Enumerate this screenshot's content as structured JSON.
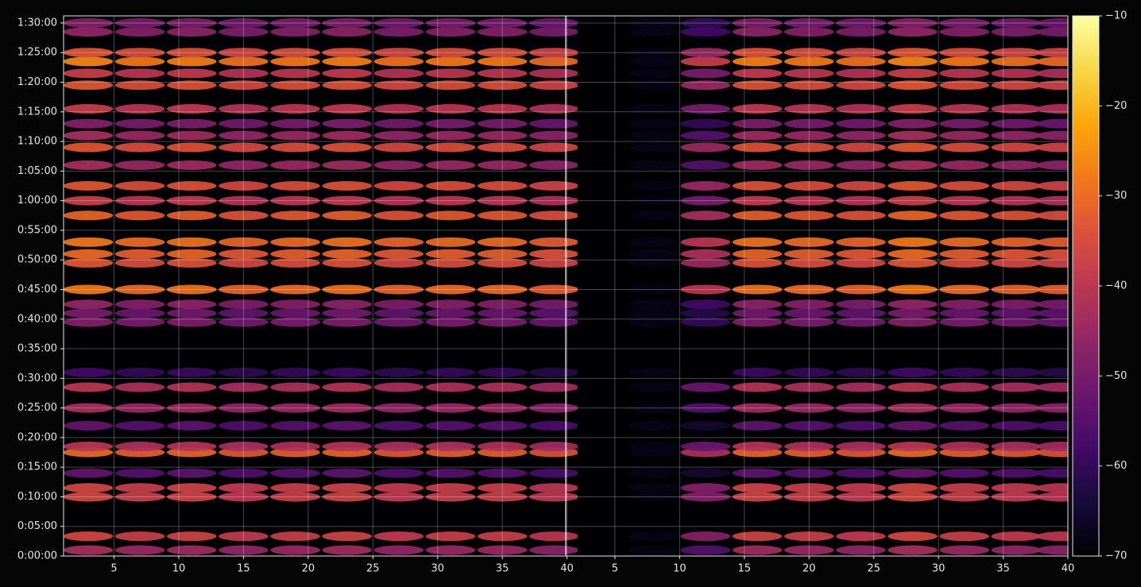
{
  "chart_data": {
    "type": "heatmap",
    "x": [
      3,
      7,
      11,
      15,
      19,
      23,
      27,
      31,
      35,
      39,
      42.7,
      46.7,
      50.7,
      54.7,
      58.7,
      62.7,
      66.7,
      70.7,
      74.7,
      78.2
    ],
    "y": [
      60,
      200,
      600,
      690,
      840,
      1050,
      1110,
      1320,
      1500,
      1710,
      1860,
      2370,
      2460,
      2550,
      2700,
      2970,
      3060,
      3180,
      3450,
      3600,
      3750,
      3960,
      4140,
      4260,
      4380,
      4530,
      4770,
      4890,
      5010,
      5100,
      5310,
      5400
    ],
    "values": [
      [
        -43,
        -45,
        -44,
        -46,
        -45,
        -44,
        -46,
        -45,
        -45,
        -47,
        -70,
        -68,
        -55,
        -44,
        -45,
        -46,
        -43,
        -45,
        -46,
        -47
      ],
      [
        -36,
        -38,
        -37,
        -39,
        -38,
        -37,
        -39,
        -38,
        -38,
        -40,
        -70,
        -68,
        -48,
        -37,
        -38,
        -39,
        -36,
        -38,
        -39,
        -40
      ],
      [
        -36,
        -38,
        -37,
        -39,
        -38,
        -37,
        -39,
        -38,
        -38,
        -40,
        -70,
        -68,
        -48,
        -37,
        -38,
        -39,
        -36,
        -38,
        -39,
        -40
      ],
      [
        -36,
        -38,
        -37,
        -39,
        -38,
        -37,
        -39,
        -38,
        -38,
        -40,
        -70,
        -68,
        -48,
        -37,
        -38,
        -39,
        -36,
        -38,
        -39,
        -40
      ],
      [
        -53,
        -55,
        -54,
        -56,
        -55,
        -54,
        -56,
        -55,
        -55,
        -57,
        -70,
        -68,
        -65,
        -54,
        -55,
        -56,
        -53,
        -55,
        -56,
        -57
      ],
      [
        -30,
        -32,
        -31,
        -33,
        -32,
        -31,
        -33,
        -32,
        -32,
        -34,
        -70,
        -68,
        -42,
        -31,
        -32,
        -33,
        -30,
        -32,
        -33,
        -34
      ],
      [
        -40,
        -42,
        -41,
        -43,
        -42,
        -41,
        -43,
        -42,
        -42,
        -44,
        -70,
        -68,
        -52,
        -41,
        -42,
        -43,
        -40,
        -42,
        -43,
        -44
      ],
      [
        -53,
        -55,
        -54,
        -56,
        -55,
        -54,
        -56,
        -55,
        -55,
        -57,
        -70,
        -68,
        -65,
        -54,
        -55,
        -56,
        -53,
        -55,
        -56,
        -57
      ],
      [
        -43,
        -45,
        -44,
        -46,
        -45,
        -44,
        -46,
        -45,
        -45,
        -47,
        -70,
        -68,
        -55,
        -44,
        -45,
        -46,
        -43,
        -45,
        -46,
        -47
      ],
      [
        -40,
        -42,
        -41,
        -43,
        -42,
        -41,
        -43,
        -42,
        -42,
        -44,
        -70,
        -68,
        -52,
        -41,
        -42,
        -43,
        -40,
        -42,
        -43,
        -44
      ],
      [
        -58,
        -60,
        -59,
        -61,
        -60,
        -59,
        -61,
        -60,
        -60,
        -62,
        -70,
        -68,
        -70,
        -59,
        -60,
        -61,
        -58,
        -60,
        -61,
        -62
      ],
      [
        -48,
        -50,
        -49,
        -51,
        -50,
        -49,
        -51,
        -50,
        -50,
        -52,
        -70,
        -68,
        -60,
        -49,
        -50,
        -51,
        -48,
        -50,
        -51,
        -52
      ],
      [
        -50,
        -52,
        -51,
        -53,
        -52,
        -51,
        -53,
        -52,
        -52,
        -54,
        -70,
        -68,
        -62,
        -51,
        -52,
        -53,
        -50,
        -52,
        -53,
        -54
      ],
      [
        -46,
        -48,
        -47,
        -49,
        -48,
        -47,
        -49,
        -48,
        -48,
        -50,
        -70,
        -68,
        -58,
        -47,
        -48,
        -49,
        -46,
        -48,
        -49,
        -50
      ],
      [
        -28,
        -30,
        -29,
        -31,
        -30,
        -29,
        -31,
        -30,
        -30,
        -32,
        -70,
        -68,
        -40,
        -29,
        -30,
        -31,
        -28,
        -30,
        -31,
        -32
      ],
      [
        -33,
        -35,
        -34,
        -36,
        -35,
        -34,
        -36,
        -35,
        -35,
        -37,
        -70,
        -68,
        -45,
        -34,
        -35,
        -36,
        -33,
        -35,
        -36,
        -37
      ],
      [
        -30,
        -32,
        -31,
        -33,
        -32,
        -31,
        -33,
        -32,
        -32,
        -34,
        -70,
        -68,
        -42,
        -31,
        -32,
        -33,
        -30,
        -32,
        -33,
        -34
      ],
      [
        -28,
        -30,
        -29,
        -31,
        -30,
        -29,
        -31,
        -30,
        -30,
        -32,
        -70,
        -68,
        -40,
        -29,
        -30,
        -31,
        -28,
        -30,
        -31,
        -32
      ],
      [
        -31,
        -33,
        -32,
        -34,
        -33,
        -32,
        -34,
        -33,
        -33,
        -35,
        -70,
        -68,
        -43,
        -32,
        -33,
        -34,
        -31,
        -33,
        -34,
        -35
      ],
      [
        -38,
        -40,
        -39,
        -41,
        -40,
        -39,
        -41,
        -40,
        -40,
        -42,
        -70,
        -68,
        -50,
        -39,
        -40,
        -41,
        -38,
        -40,
        -41,
        -42
      ],
      [
        -33,
        -35,
        -34,
        -36,
        -35,
        -34,
        -36,
        -35,
        -35,
        -37,
        -70,
        -68,
        -45,
        -34,
        -35,
        -36,
        -33,
        -35,
        -36,
        -37
      ],
      [
        -43,
        -45,
        -44,
        -46,
        -45,
        -44,
        -46,
        -45,
        -45,
        -47,
        -70,
        -68,
        -55,
        -44,
        -45,
        -46,
        -43,
        -45,
        -46,
        -47
      ],
      [
        -33,
        -35,
        -34,
        -36,
        -35,
        -34,
        -36,
        -35,
        -35,
        -37,
        -70,
        -68,
        -45,
        -34,
        -35,
        -36,
        -33,
        -35,
        -36,
        -37
      ],
      [
        -43,
        -45,
        -44,
        -46,
        -45,
        -44,
        -46,
        -45,
        -45,
        -47,
        -70,
        -68,
        -55,
        -44,
        -45,
        -46,
        -43,
        -45,
        -46,
        -47
      ],
      [
        -48,
        -50,
        -49,
        -51,
        -50,
        -49,
        -51,
        -50,
        -50,
        -52,
        -70,
        -68,
        -60,
        -49,
        -50,
        -51,
        -48,
        -50,
        -51,
        -52
      ],
      [
        -38,
        -40,
        -39,
        -41,
        -40,
        -39,
        -41,
        -40,
        -40,
        -42,
        -70,
        -68,
        -50,
        -39,
        -40,
        -41,
        -38,
        -40,
        -41,
        -42
      ],
      [
        -33,
        -35,
        -34,
        -36,
        -35,
        -34,
        -36,
        -35,
        -35,
        -37,
        -70,
        -68,
        -45,
        -34,
        -35,
        -36,
        -33,
        -35,
        -36,
        -37
      ],
      [
        -38,
        -40,
        -39,
        -41,
        -40,
        -39,
        -41,
        -40,
        -40,
        -42,
        -70,
        -68,
        -50,
        -39,
        -40,
        -41,
        -38,
        -40,
        -41,
        -42
      ],
      [
        -26,
        -28,
        -27,
        -29,
        -28,
        -27,
        -29,
        -28,
        -28,
        -30,
        -70,
        -68,
        -38,
        -27,
        -28,
        -29,
        -26,
        -28,
        -29,
        -30
      ],
      [
        -33,
        -35,
        -34,
        -36,
        -35,
        -34,
        -36,
        -35,
        -35,
        -37,
        -70,
        -68,
        -45,
        -34,
        -35,
        -36,
        -33,
        -35,
        -36,
        -37
      ],
      [
        -46,
        -48,
        -47,
        -49,
        -48,
        -47,
        -49,
        -48,
        -48,
        -50,
        -70,
        -68,
        -58,
        -47,
        -48,
        -49,
        -46,
        -48,
        -49,
        -50
      ],
      [
        -48,
        -50,
        -49,
        -51,
        -50,
        -49,
        -51,
        -50,
        -50,
        -52,
        -70,
        -68,
        -60,
        -49,
        -50,
        -51,
        -48,
        -50,
        -51,
        -52
      ]
    ],
    "colormap": "inferno",
    "xlim": [
      1.1,
      78.7
    ],
    "xticks": [
      5,
      10,
      15,
      20,
      25,
      30,
      35,
      40,
      {
        "value": 43.7,
        "label": "5"
      },
      {
        "value": 48.7,
        "label": "10"
      },
      {
        "value": 53.7,
        "label": "15"
      },
      {
        "value": 58.7,
        "label": "20"
      },
      {
        "value": 63.7,
        "label": "25"
      },
      {
        "value": 68.7,
        "label": "30"
      },
      {
        "value": 73.7,
        "label": "35"
      },
      {
        "value": 78.7,
        "label": "40"
      }
    ],
    "ylim": [
      0,
      5472
    ],
    "yticks": [
      {
        "value": 0,
        "label": "0:00:00"
      },
      {
        "value": 300,
        "label": "0:05:00"
      },
      {
        "value": 600,
        "label": "0:10:00"
      },
      {
        "value": 900,
        "label": "0:15:00"
      },
      {
        "value": 1200,
        "label": "0:20:00"
      },
      {
        "value": 1500,
        "label": "0:25:00"
      },
      {
        "value": 1800,
        "label": "0:30:00"
      },
      {
        "value": 2100,
        "label": "0:35:00"
      },
      {
        "value": 2400,
        "label": "0:40:00"
      },
      {
        "value": 2700,
        "label": "0:45:00"
      },
      {
        "value": 3000,
        "label": "0:50:00"
      },
      {
        "value": 3300,
        "label": "0:55:00"
      },
      {
        "value": 3600,
        "label": "1:00:00"
      },
      {
        "value": 3900,
        "label": "1:05:00"
      },
      {
        "value": 4200,
        "label": "1:10:00"
      },
      {
        "value": 4500,
        "label": "1:15:00"
      },
      {
        "value": 4800,
        "label": "1:20:00"
      },
      {
        "value": 5100,
        "label": "1:25:00"
      },
      {
        "value": 5400,
        "label": "1:30:00"
      }
    ],
    "clim": [
      -70,
      -10
    ],
    "cticks": [
      {
        "value": -70,
        "label": "−70"
      },
      {
        "value": -60,
        "label": "−60"
      },
      {
        "value": -50,
        "label": "−50"
      },
      {
        "value": -40,
        "label": "−40"
      },
      {
        "value": -30,
        "label": "−30"
      },
      {
        "value": -20,
        "label": "−20"
      },
      {
        "value": -10,
        "label": "−10"
      }
    ],
    "grid": true
  }
}
